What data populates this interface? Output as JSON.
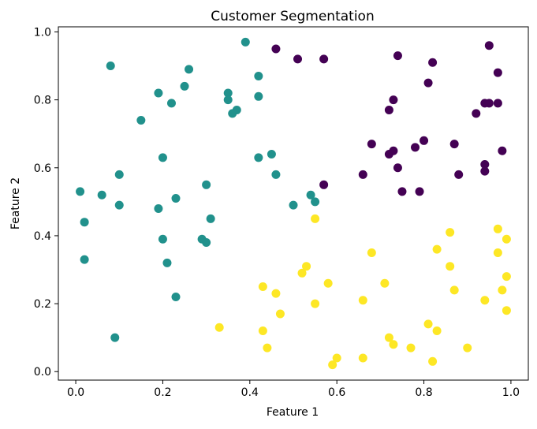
{
  "chart_data": {
    "type": "scatter",
    "title": "Customer Segmentation",
    "xlabel": "Feature 1",
    "ylabel": "Feature 2",
    "xlim": [
      -0.04,
      1.04
    ],
    "ylim": [
      -0.025,
      1.015
    ],
    "xticks": [
      0.0,
      0.2,
      0.4,
      0.6,
      0.8,
      1.0
    ],
    "yticks": [
      0.0,
      0.2,
      0.4,
      0.6,
      0.8,
      1.0
    ],
    "xtick_labels": [
      "0.0",
      "0.2",
      "0.4",
      "0.6",
      "0.8",
      "1.0"
    ],
    "ytick_labels": [
      "0.0",
      "0.2",
      "0.4",
      "0.6",
      "0.8",
      "1.0"
    ],
    "grid": false,
    "series": [
      {
        "color": "#440154",
        "points": [
          [
            0.46,
            0.95
          ],
          [
            0.51,
            0.92
          ],
          [
            0.57,
            0.92
          ],
          [
            0.74,
            0.93
          ],
          [
            0.82,
            0.91
          ],
          [
            0.95,
            0.96
          ],
          [
            0.81,
            0.85
          ],
          [
            0.97,
            0.88
          ],
          [
            0.73,
            0.8
          ],
          [
            0.72,
            0.77
          ],
          [
            0.94,
            0.79
          ],
          [
            0.95,
            0.79
          ],
          [
            0.97,
            0.79
          ],
          [
            0.92,
            0.76
          ],
          [
            0.68,
            0.67
          ],
          [
            0.73,
            0.65
          ],
          [
            0.72,
            0.64
          ],
          [
            0.78,
            0.66
          ],
          [
            0.8,
            0.68
          ],
          [
            0.87,
            0.67
          ],
          [
            0.98,
            0.65
          ],
          [
            0.94,
            0.61
          ],
          [
            0.74,
            0.6
          ],
          [
            0.94,
            0.59
          ],
          [
            0.88,
            0.58
          ],
          [
            0.66,
            0.58
          ],
          [
            0.57,
            0.55
          ],
          [
            0.75,
            0.53
          ],
          [
            0.79,
            0.53
          ]
        ]
      },
      {
        "color": "#21918c",
        "points": [
          [
            0.39,
            0.97
          ],
          [
            0.08,
            0.9
          ],
          [
            0.26,
            0.89
          ],
          [
            0.42,
            0.87
          ],
          [
            0.25,
            0.84
          ],
          [
            0.35,
            0.82
          ],
          [
            0.19,
            0.82
          ],
          [
            0.35,
            0.8
          ],
          [
            0.42,
            0.81
          ],
          [
            0.22,
            0.79
          ],
          [
            0.37,
            0.77
          ],
          [
            0.36,
            0.76
          ],
          [
            0.15,
            0.74
          ],
          [
            0.2,
            0.63
          ],
          [
            0.42,
            0.63
          ],
          [
            0.45,
            0.64
          ],
          [
            0.46,
            0.58
          ],
          [
            0.1,
            0.58
          ],
          [
            0.3,
            0.55
          ],
          [
            0.01,
            0.53
          ],
          [
            0.06,
            0.52
          ],
          [
            0.23,
            0.51
          ],
          [
            0.54,
            0.52
          ],
          [
            0.55,
            0.5
          ],
          [
            0.5,
            0.49
          ],
          [
            0.1,
            0.49
          ],
          [
            0.19,
            0.48
          ],
          [
            0.31,
            0.45
          ],
          [
            0.02,
            0.44
          ],
          [
            0.2,
            0.39
          ],
          [
            0.29,
            0.39
          ],
          [
            0.3,
            0.38
          ],
          [
            0.02,
            0.33
          ],
          [
            0.21,
            0.32
          ],
          [
            0.23,
            0.22
          ],
          [
            0.09,
            0.1
          ]
        ]
      },
      {
        "color": "#fde725",
        "points": [
          [
            0.55,
            0.45
          ],
          [
            0.97,
            0.42
          ],
          [
            0.86,
            0.41
          ],
          [
            0.99,
            0.39
          ],
          [
            0.68,
            0.35
          ],
          [
            0.83,
            0.36
          ],
          [
            0.97,
            0.35
          ],
          [
            0.53,
            0.31
          ],
          [
            0.86,
            0.31
          ],
          [
            0.52,
            0.29
          ],
          [
            0.99,
            0.28
          ],
          [
            0.43,
            0.25
          ],
          [
            0.58,
            0.26
          ],
          [
            0.71,
            0.26
          ],
          [
            0.46,
            0.23
          ],
          [
            0.87,
            0.24
          ],
          [
            0.98,
            0.24
          ],
          [
            0.66,
            0.21
          ],
          [
            0.55,
            0.2
          ],
          [
            0.94,
            0.21
          ],
          [
            0.99,
            0.18
          ],
          [
            0.47,
            0.17
          ],
          [
            0.33,
            0.13
          ],
          [
            0.43,
            0.12
          ],
          [
            0.81,
            0.14
          ],
          [
            0.83,
            0.12
          ],
          [
            0.72,
            0.1
          ],
          [
            0.73,
            0.08
          ],
          [
            0.77,
            0.07
          ],
          [
            0.44,
            0.07
          ],
          [
            0.9,
            0.07
          ],
          [
            0.6,
            0.04
          ],
          [
            0.66,
            0.04
          ],
          [
            0.59,
            0.02
          ],
          [
            0.82,
            0.03
          ]
        ]
      }
    ]
  }
}
